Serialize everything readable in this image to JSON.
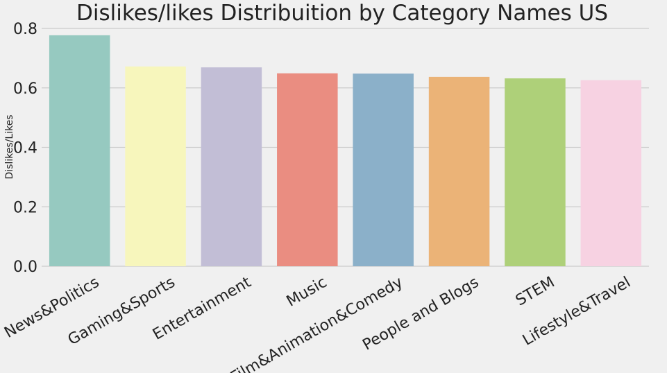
{
  "chart_data": {
    "type": "bar",
    "title": "Dislikes/likes Distribuition by Category Names US",
    "xlabel": "",
    "ylabel": "Dislikes/Likes",
    "categories": [
      "News&Politics",
      "Gaming&Sports",
      "Entertainment",
      "Music",
      "Film&Animation&Comedy",
      "People and Blogs",
      "STEM",
      "Lifestyle&Travel"
    ],
    "values": [
      0.777,
      0.672,
      0.669,
      0.649,
      0.648,
      0.637,
      0.632,
      0.626
    ],
    "colors": [
      "#96c9c0",
      "#f7f6bc",
      "#c2bed6",
      "#ea8d81",
      "#8bb0c9",
      "#ebb377",
      "#aed079",
      "#f7d2e2"
    ],
    "ylim": [
      0,
      0.8
    ],
    "yticks": [
      "0.0",
      "0.2",
      "0.4",
      "0.6",
      "0.8"
    ],
    "ytick_values": [
      0,
      0.2,
      0.4,
      0.6,
      0.8
    ],
    "grid": true,
    "background": "#f0f0f0",
    "grid_color": "#cbcbcb",
    "text_color": "#222222"
  }
}
